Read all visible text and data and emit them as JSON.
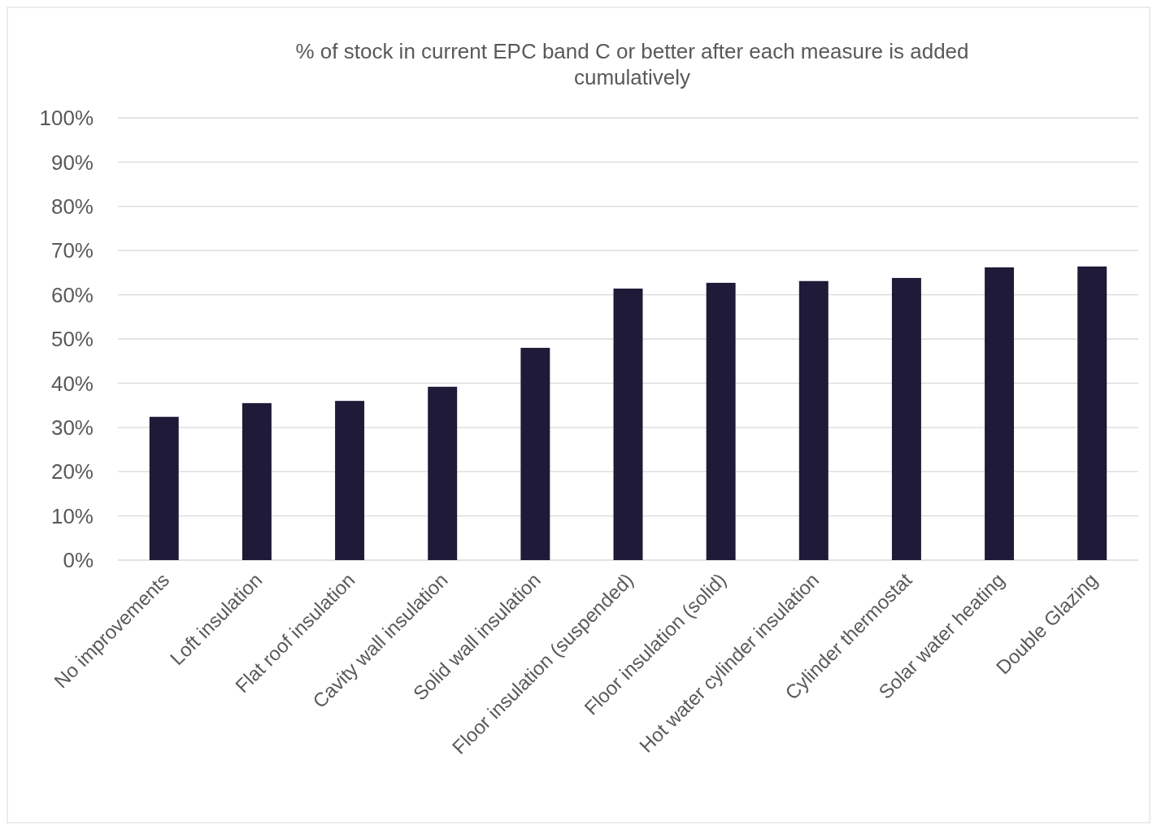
{
  "chart_data": {
    "type": "bar",
    "title": "% of stock in current EPC band C or better after each measure is added cumulatively",
    "categories": [
      "No improvements",
      "Loft insulation",
      "Flat roof insulation",
      "Cavity wall insulation",
      "Solid wall insulation",
      "Floor insulation (suspended)",
      "Floor insulation (solid)",
      "Hot water cylinder insulation",
      "Cylinder thermostat",
      "Solar water heating",
      "Double Glazing"
    ],
    "values": [
      32.4,
      35.5,
      36.0,
      39.2,
      48.0,
      61.4,
      62.7,
      63.1,
      63.8,
      66.2,
      66.4
    ],
    "color": "#1f1a38",
    "ylim": [
      0,
      100
    ],
    "yticks": [
      {
        "value": 0,
        "label": "0%"
      },
      {
        "value": 10,
        "label": "10%"
      },
      {
        "value": 20,
        "label": "20%"
      },
      {
        "value": 30,
        "label": "30%"
      },
      {
        "value": 40,
        "label": "40%"
      },
      {
        "value": 50,
        "label": "50%"
      },
      {
        "value": 60,
        "label": "60%"
      },
      {
        "value": 70,
        "label": "70%"
      },
      {
        "value": 80,
        "label": "80%"
      },
      {
        "value": 90,
        "label": "90%"
      },
      {
        "value": 100,
        "label": "100%"
      }
    ],
    "grid": "y"
  }
}
